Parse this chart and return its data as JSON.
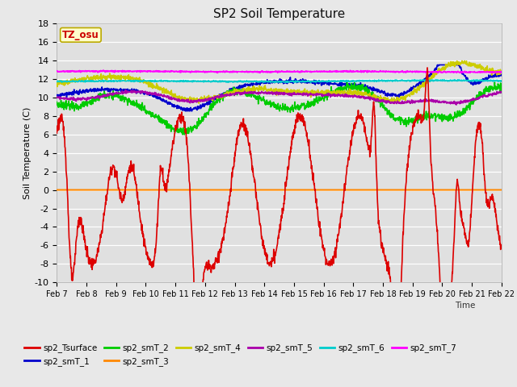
{
  "title": "SP2 Soil Temperature",
  "ylabel": "Soil Temperature (C)",
  "xlabel_time": "Time",
  "ylim": [
    -10,
    18
  ],
  "tz_label": "TZ_osu",
  "fig_bg_color": "#e8e8e8",
  "plot_bg_color": "#e0e0e0",
  "grid_color": "#ffffff",
  "series_colors": {
    "sp2_Tsurface": "#dd0000",
    "sp2_smT_1": "#0000cc",
    "sp2_smT_2": "#00cc00",
    "sp2_smT_3": "#ff8800",
    "sp2_smT_4": "#cccc00",
    "sp2_smT_5": "#aa00aa",
    "sp2_smT_6": "#00cccc",
    "sp2_smT_7": "#ff00ff"
  },
  "xtick_labels": [
    "Feb 7",
    "Feb 8",
    "Feb 9",
    "Feb 10",
    "Feb 11",
    "Feb 12",
    "Feb 13",
    "Feb 14",
    "Feb 15",
    "Feb 16",
    "Feb 17",
    "Feb 18",
    "Feb 19",
    "Feb 20",
    "Feb 21",
    "Feb 22"
  ]
}
